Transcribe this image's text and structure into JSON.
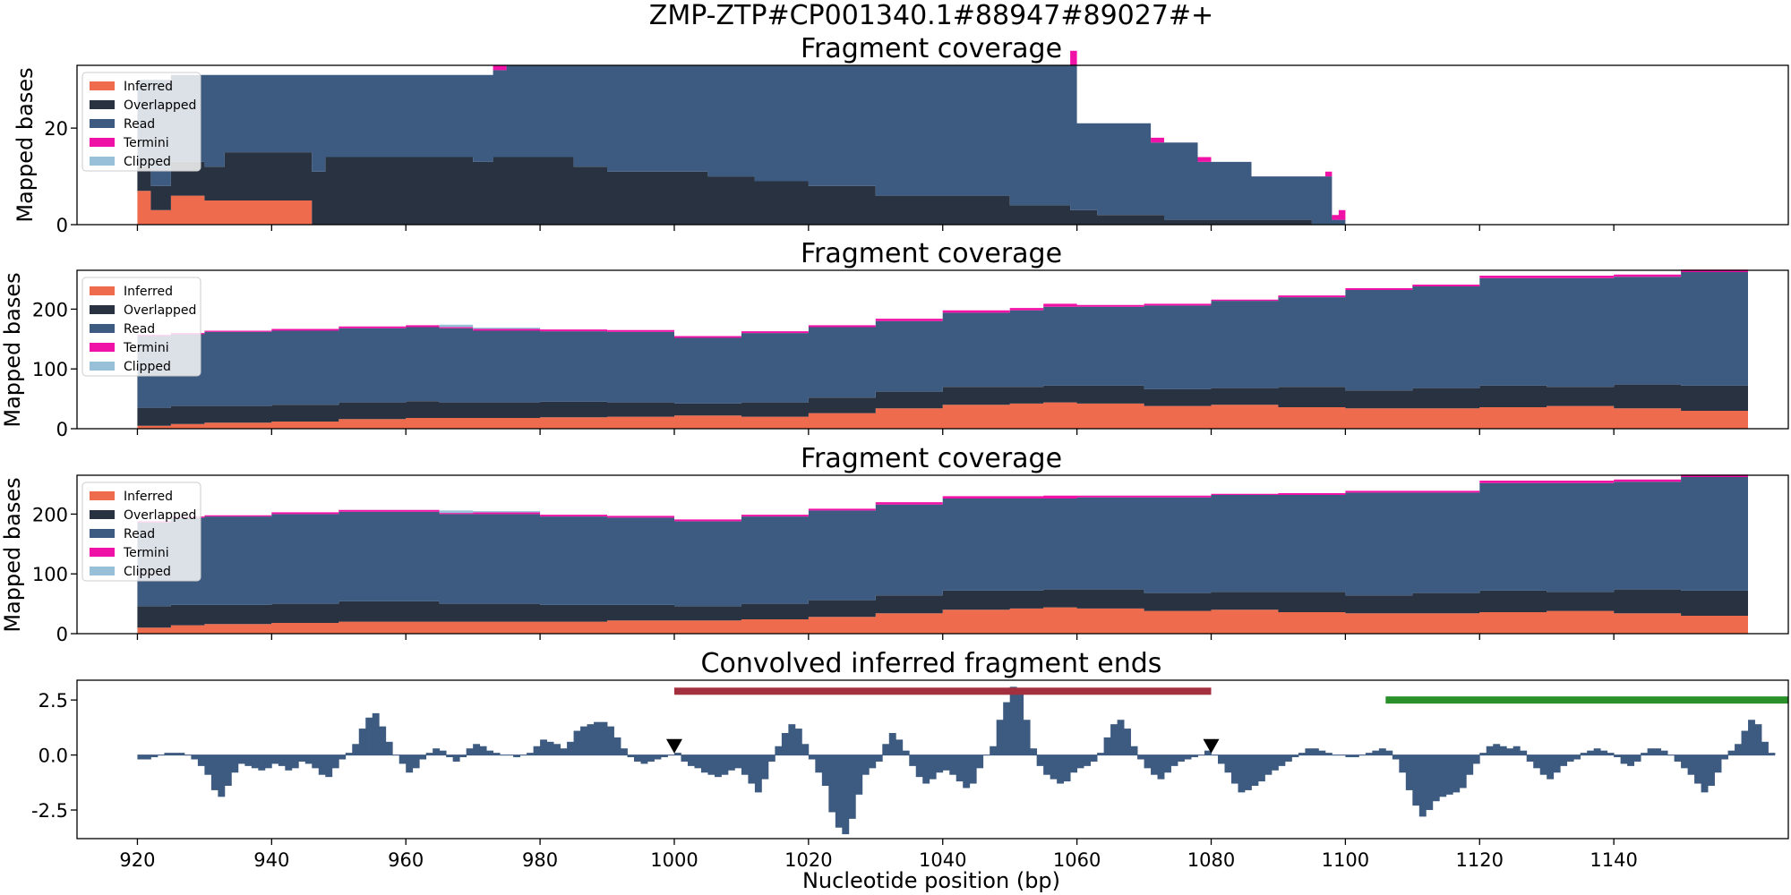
{
  "figure": {
    "suptitle": "ZMP-ZTP#CP001340.1#88947#89027#+",
    "xlabel": "Nucleotide position (bp)"
  },
  "colors": {
    "inferred": "#ee6c4d",
    "overlapped": "#293241",
    "read": "#3d5a80",
    "termini": "#f012a6",
    "clipped": "#98c1d9",
    "bar_red": "#a4303f",
    "bar_green": "#2a912a"
  },
  "chart_data": [
    {
      "type": "area",
      "title": "Fragment coverage",
      "ylabel": "Mapped bases",
      "xlim": [
        911,
        1166
      ],
      "ylim": [
        0,
        33
      ],
      "yticks": [
        0,
        20
      ],
      "legend_position": "top-left",
      "legend": [
        "Inferred",
        "Overlapped",
        "Read",
        "Termini",
        "Clipped"
      ],
      "series": {
        "x": [
          920,
          922,
          925,
          930,
          933,
          937,
          940,
          946,
          948,
          951,
          958,
          963,
          970,
          973,
          975,
          980,
          985,
          990,
          998,
          1005,
          1012,
          1020,
          1030,
          1040,
          1050,
          1053,
          1059,
          1060,
          1063,
          1067,
          1071,
          1073,
          1078,
          1080,
          1086,
          1090,
          1095,
          1097,
          1098,
          1099,
          1100
        ],
        "inferred": [
          7,
          3,
          6,
          5,
          5,
          5,
          5,
          0,
          0,
          0,
          0,
          0,
          0,
          0,
          0,
          0,
          0,
          0,
          0,
          0,
          0,
          0,
          0,
          0,
          0,
          0,
          0,
          0,
          0,
          0,
          0,
          0,
          0,
          0,
          0,
          0,
          0,
          0,
          0,
          0,
          0
        ],
        "overlapped": [
          5,
          5,
          7,
          7,
          10,
          10,
          10,
          11,
          14,
          14,
          14,
          14,
          13,
          14,
          14,
          14,
          12,
          11,
          11,
          10,
          9,
          8,
          6,
          6,
          4,
          4,
          3,
          3,
          2,
          2,
          2,
          1,
          1,
          1,
          1,
          1,
          0,
          0,
          0,
          0,
          0
        ],
        "read": [
          18,
          22,
          18,
          19,
          16,
          16,
          16,
          20,
          17,
          17,
          17,
          17,
          18,
          18,
          19,
          19,
          21,
          22,
          22,
          23,
          24,
          25,
          27,
          27,
          29,
          29,
          30,
          18,
          19,
          19,
          15,
          16,
          12,
          12,
          9,
          9,
          10,
          10,
          1,
          1,
          0
        ],
        "termini": [
          0,
          0,
          0,
          0,
          0,
          0,
          0,
          0,
          0,
          0,
          0,
          0,
          0,
          1,
          0,
          0,
          0,
          0,
          0,
          0,
          0,
          0,
          0,
          0,
          0,
          0,
          3,
          0,
          0,
          0,
          1,
          0,
          1,
          0,
          0,
          0,
          0,
          1,
          1,
          2,
          0
        ],
        "clipped": [
          0,
          0,
          0,
          0,
          0,
          0,
          0,
          0,
          0,
          0,
          0,
          0,
          0,
          0,
          0,
          0,
          0,
          0,
          0,
          0,
          0,
          0,
          0,
          0,
          0,
          0,
          0,
          0,
          0,
          0,
          0,
          0,
          0,
          0,
          0,
          0,
          0,
          0,
          0,
          0,
          0
        ]
      }
    },
    {
      "type": "area",
      "title": "Fragment coverage",
      "ylabel": "Mapped bases",
      "xlim": [
        911,
        1166
      ],
      "ylim": [
        0,
        265
      ],
      "yticks": [
        0,
        100,
        200
      ],
      "legend_position": "top-left",
      "legend": [
        "Inferred",
        "Overlapped",
        "Read",
        "Termini",
        "Clipped"
      ],
      "series": {
        "x": [
          920,
          925,
          930,
          940,
          950,
          960,
          965,
          970,
          980,
          990,
          1000,
          1010,
          1020,
          1030,
          1040,
          1050,
          1055,
          1060,
          1070,
          1080,
          1090,
          1100,
          1110,
          1120,
          1130,
          1140,
          1150,
          1160
        ],
        "inferred": [
          5,
          8,
          10,
          12,
          16,
          18,
          18,
          18,
          19,
          20,
          22,
          20,
          26,
          34,
          40,
          42,
          44,
          42,
          38,
          40,
          36,
          34,
          34,
          36,
          38,
          34,
          30,
          28
        ],
        "overlapped": [
          30,
          30,
          28,
          28,
          28,
          28,
          26,
          26,
          26,
          24,
          20,
          24,
          26,
          28,
          30,
          28,
          28,
          30,
          28,
          28,
          34,
          30,
          34,
          36,
          32,
          40,
          42,
          45
        ],
        "read": [
          120,
          120,
          124,
          124,
          124,
          124,
          124,
          120,
          118,
          118,
          110,
          116,
          118,
          118,
          124,
          128,
          132,
          132,
          140,
          146,
          150,
          168,
          170,
          180,
          182,
          180,
          190,
          182
        ],
        "termini": [
          2,
          2,
          2,
          3,
          3,
          3,
          2,
          3,
          3,
          3,
          3,
          3,
          3,
          4,
          4,
          4,
          5,
          3,
          3,
          2,
          3,
          3,
          3,
          4,
          4,
          4,
          4,
          3
        ],
        "clipped": [
          0,
          0,
          0,
          0,
          0,
          0,
          4,
          2,
          0,
          0,
          0,
          0,
          0,
          0,
          0,
          0,
          0,
          0,
          0,
          0,
          0,
          0,
          0,
          0,
          0,
          0,
          0,
          0
        ]
      }
    },
    {
      "type": "area",
      "title": "Fragment coverage",
      "ylabel": "Mapped bases",
      "xlim": [
        911,
        1166
      ],
      "ylim": [
        0,
        265
      ],
      "yticks": [
        0,
        100,
        200
      ],
      "legend_position": "top-left",
      "legend": [
        "Inferred",
        "Overlapped",
        "Read",
        "Termini",
        "Clipped"
      ],
      "series": {
        "x": [
          920,
          925,
          930,
          940,
          950,
          960,
          965,
          970,
          980,
          990,
          1000,
          1010,
          1020,
          1030,
          1040,
          1050,
          1055,
          1060,
          1070,
          1080,
          1090,
          1100,
          1110,
          1120,
          1130,
          1140,
          1150,
          1160
        ],
        "inferred": [
          10,
          14,
          16,
          18,
          20,
          20,
          20,
          20,
          20,
          22,
          22,
          24,
          28,
          34,
          40,
          42,
          44,
          42,
          38,
          40,
          36,
          34,
          34,
          36,
          38,
          34,
          30,
          28
        ],
        "overlapped": [
          36,
          34,
          32,
          32,
          34,
          34,
          30,
          30,
          28,
          26,
          24,
          26,
          28,
          30,
          32,
          30,
          30,
          32,
          30,
          30,
          34,
          30,
          34,
          36,
          32,
          40,
          42,
          45
        ],
        "read": [
          140,
          146,
          148,
          150,
          150,
          150,
          150,
          150,
          148,
          146,
          142,
          146,
          150,
          152,
          154,
          154,
          152,
          154,
          160,
          162,
          162,
          172,
          168,
          180,
          182,
          180,
          190,
          182
        ],
        "termini": [
          2,
          2,
          2,
          3,
          3,
          3,
          2,
          3,
          3,
          3,
          3,
          3,
          3,
          4,
          4,
          4,
          5,
          3,
          3,
          2,
          3,
          3,
          3,
          4,
          4,
          4,
          4,
          3
        ],
        "clipped": [
          0,
          0,
          0,
          0,
          0,
          0,
          4,
          2,
          0,
          0,
          0,
          0,
          0,
          0,
          0,
          0,
          0,
          0,
          0,
          0,
          0,
          0,
          0,
          0,
          0,
          0,
          0,
          0
        ]
      }
    },
    {
      "type": "bar",
      "title": "Convolved inferred fragment ends",
      "xlabel": "Nucleotide position (bp)",
      "xlim": [
        911,
        1166
      ],
      "ylim": [
        -3.8,
        3.4
      ],
      "yticks": [
        -2.5,
        0.0,
        2.5
      ],
      "xticks": [
        920,
        940,
        960,
        980,
        1000,
        1020,
        1040,
        1060,
        1080,
        1100,
        1120,
        1140
      ],
      "bar_color": "#3d5a80",
      "x_start": 920,
      "values": [
        -0.2,
        -0.2,
        -0.1,
        0.0,
        0.1,
        0.1,
        0.1,
        0.0,
        -0.2,
        -0.5,
        -0.9,
        -1.6,
        -1.9,
        -1.4,
        -0.8,
        -0.4,
        -0.5,
        -0.6,
        -0.7,
        -0.6,
        -0.4,
        -0.5,
        -0.7,
        -0.6,
        -0.3,
        -0.4,
        -0.6,
        -0.9,
        -1.0,
        -0.6,
        -0.2,
        0.1,
        0.5,
        1.2,
        1.7,
        1.9,
        1.3,
        0.6,
        0.0,
        -0.4,
        -0.8,
        -0.6,
        -0.2,
        0.1,
        0.3,
        0.2,
        -0.1,
        -0.3,
        -0.1,
        0.3,
        0.5,
        0.4,
        0.2,
        0.1,
        0.0,
        0.0,
        -0.1,
        0.0,
        0.1,
        0.4,
        0.7,
        0.6,
        0.5,
        0.3,
        0.6,
        1.1,
        1.3,
        1.4,
        1.5,
        1.5,
        1.3,
        0.8,
        0.3,
        -0.1,
        -0.3,
        -0.4,
        -0.3,
        -0.2,
        -0.1,
        0.0,
        0.1,
        -0.3,
        -0.5,
        -0.6,
        -0.8,
        -0.9,
        -1.0,
        -0.9,
        -0.7,
        -0.6,
        -0.9,
        -1.3,
        -1.7,
        -1.1,
        -0.3,
        0.4,
        1.0,
        1.4,
        1.2,
        0.5,
        -0.2,
        -0.8,
        -1.4,
        -2.6,
        -3.3,
        -3.6,
        -2.9,
        -1.8,
        -0.9,
        -0.6,
        -0.3,
        0.5,
        1.0,
        0.7,
        0.2,
        -0.5,
        -1.0,
        -1.3,
        -1.1,
        -0.8,
        -0.7,
        -0.9,
        -1.2,
        -1.5,
        -1.3,
        -0.6,
        0.0,
        0.4,
        1.6,
        2.4,
        3.1,
        2.9,
        1.6,
        0.3,
        -0.5,
        -0.9,
        -1.1,
        -1.3,
        -1.2,
        -0.8,
        -0.6,
        -0.5,
        -0.3,
        0.1,
        0.8,
        1.4,
        1.6,
        1.2,
        0.4,
        -0.2,
        -0.6,
        -0.9,
        -1.1,
        -0.8,
        -0.5,
        -0.3,
        -0.2,
        -0.1,
        0.0,
        0.2,
        0.0,
        -0.4,
        -0.8,
        -1.3,
        -1.7,
        -1.6,
        -1.4,
        -1.2,
        -0.9,
        -0.7,
        -0.5,
        -0.3,
        -0.1,
        0.1,
        0.3,
        0.3,
        0.2,
        0.1,
        0.0,
        0.0,
        -0.1,
        -0.1,
        0.0,
        0.1,
        0.2,
        0.3,
        0.2,
        -0.2,
        -0.8,
        -1.6,
        -2.3,
        -2.8,
        -2.5,
        -2.1,
        -1.9,
        -1.8,
        -1.7,
        -1.5,
        -0.9,
        -0.4,
        0.1,
        0.4,
        0.5,
        0.4,
        0.3,
        0.4,
        0.2,
        -0.3,
        -0.6,
        -0.9,
        -1.1,
        -0.8,
        -0.5,
        -0.3,
        -0.2,
        0.1,
        0.2,
        0.3,
        0.2,
        0.1,
        -0.1,
        -0.4,
        -0.5,
        -0.3,
        0.1,
        0.3,
        0.3,
        0.2,
        0.0,
        -0.3,
        -0.6,
        -0.9,
        -1.3,
        -1.7,
        -1.4,
        -0.8,
        -0.2,
        0.2,
        0.5,
        1.1,
        1.6,
        1.4,
        0.6,
        0.1
      ],
      "markers": [
        {
          "type": "triangle-down",
          "x": 1000,
          "y": 0.4
        },
        {
          "type": "triangle-down",
          "x": 1080,
          "y": 0.4
        }
      ],
      "hbars": [
        {
          "x0": 1000,
          "x1": 1080,
          "y": 2.9,
          "color": "#a4303f"
        },
        {
          "x0": 1106,
          "x1": 1166,
          "y": 2.5,
          "color": "#2a912a"
        }
      ]
    }
  ]
}
